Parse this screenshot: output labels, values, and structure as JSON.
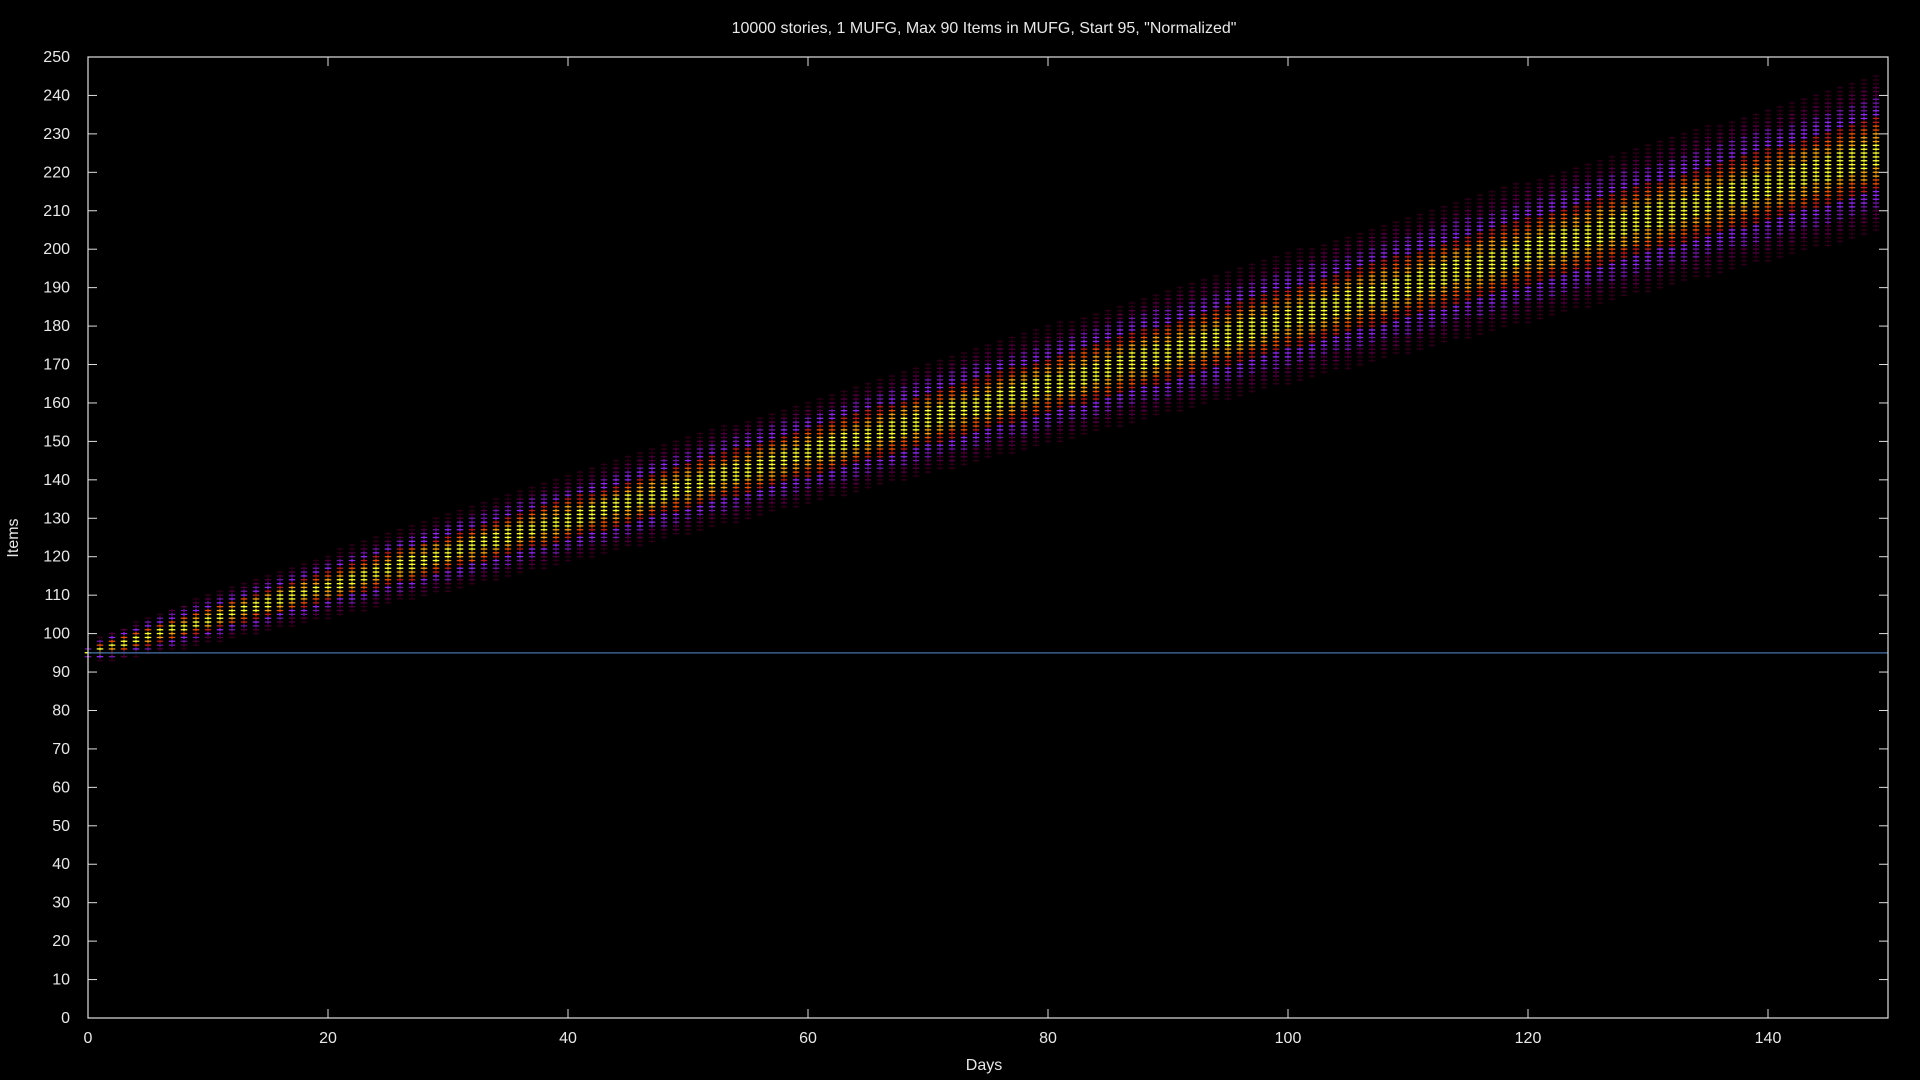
{
  "chart_data": {
    "type": "heatmap",
    "title": "10000 stories, 1 MUFG, Max 90 Items in MUFG, Start 95, \"Normalized\"",
    "xlabel": "Days",
    "ylabel": "Items",
    "xlim": [
      0,
      150
    ],
    "ylim": [
      0,
      250
    ],
    "x_ticks": [
      0,
      20,
      40,
      60,
      80,
      100,
      120,
      140
    ],
    "y_ticks": [
      0,
      10,
      20,
      30,
      40,
      50,
      60,
      70,
      80,
      90,
      100,
      110,
      120,
      130,
      140,
      150,
      160,
      170,
      180,
      190,
      200,
      210,
      220,
      230,
      240,
      250
    ],
    "grid": false,
    "start_line": {
      "y": 95,
      "color": "#3b5f8f"
    },
    "distribution": {
      "start_items": 95,
      "mean_growth_per_day": 0.87,
      "spread_growth": 0.55,
      "day_step": 1,
      "item_step": 1
    },
    "density_colors": [
      "#2a0018",
      "#4a0038",
      "#6a1a9a",
      "#8a2be2",
      "#b02020",
      "#e05010",
      "#f0a020",
      "#ffff40"
    ],
    "background": "#000000",
    "axis_color": "#e0e0e0"
  }
}
